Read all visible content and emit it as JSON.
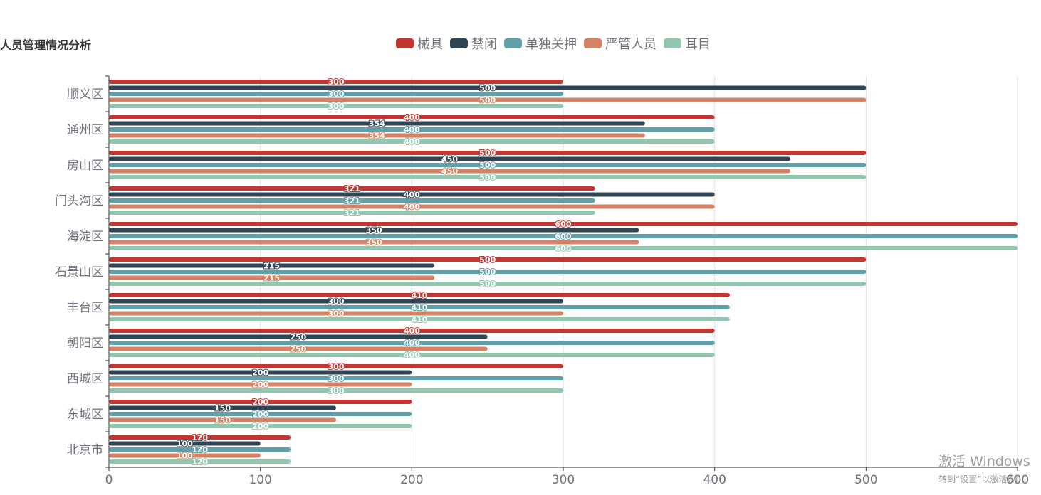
{
  "chart_data": {
    "type": "bar",
    "orientation": "horizontal",
    "title": "人员管理情况分析",
    "categories": [
      "北京市",
      "东城区",
      "西城区",
      "朝阳区",
      "丰台区",
      "石景山区",
      "海淀区",
      "门头沟区",
      "房山区",
      "通州区",
      "顺义区"
    ],
    "series": [
      {
        "name": "械具",
        "color": "#c23531",
        "values": [
          120,
          200,
          300,
          400,
          410,
          500,
          600,
          321,
          500,
          400,
          300
        ]
      },
      {
        "name": "禁闭",
        "color": "#2f4554",
        "values": [
          100,
          150,
          200,
          250,
          300,
          215,
          350,
          400,
          450,
          354,
          500
        ]
      },
      {
        "name": "单独关押",
        "color": "#61a0a8",
        "values": [
          120,
          200,
          300,
          400,
          410,
          500,
          600,
          321,
          500,
          400,
          300
        ]
      },
      {
        "name": "严管人员",
        "color": "#d48265",
        "values": [
          100,
          150,
          200,
          250,
          300,
          215,
          350,
          400,
          450,
          354,
          500
        ]
      },
      {
        "name": "耳目",
        "color": "#91c7ae",
        "values": [
          120,
          200,
          300,
          400,
          410,
          500,
          600,
          321,
          500,
          400,
          300
        ]
      }
    ],
    "xlim": [
      0,
      600
    ],
    "xticks": [
      "0",
      "100",
      "200",
      "300",
      "400",
      "500",
      "600"
    ],
    "grid": true,
    "legend_position": "top-center",
    "data_labels": true
  },
  "watermark": {
    "line1": "激活 Windows",
    "line2": "转到“设置”以激活Wi"
  }
}
